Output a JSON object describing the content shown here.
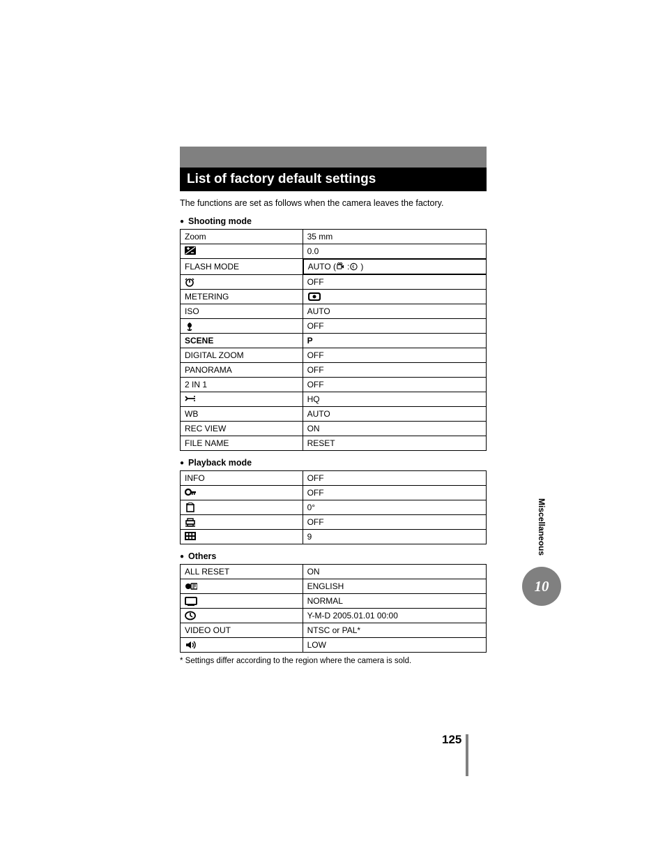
{
  "title": "List of factory default settings",
  "intro": "The functions are set as follows when the camera leaves the factory.",
  "sections": {
    "shooting": {
      "header": "Shooting mode",
      "rows": [
        {
          "label": "Zoom",
          "value": "35 mm"
        },
        {
          "icon": "exposure-comp-icon",
          "value": "0.0"
        },
        {
          "label": "FLASH MODE",
          "value_prefix": "AUTO (",
          "value_icon1": "movie-icon",
          "value_mid": ": ",
          "value_icon2": "flash-off-icon",
          "value_suffix": ")"
        },
        {
          "icon": "self-timer-icon",
          "value": "OFF"
        },
        {
          "label": "METERING",
          "value_icon": "metering-icon"
        },
        {
          "label": "ISO",
          "value": "AUTO"
        },
        {
          "icon": "macro-icon",
          "value": "OFF"
        },
        {
          "label": "SCENE",
          "label_bold": true,
          "value": "P",
          "value_bold": true
        },
        {
          "label": "DIGITAL ZOOM",
          "value": "OFF"
        },
        {
          "label": "PANORAMA",
          "value": "OFF"
        },
        {
          "label": "2 IN 1",
          "value": "OFF"
        },
        {
          "icon": "quality-icon",
          "value": "HQ"
        },
        {
          "label": "WB",
          "value": "AUTO"
        },
        {
          "label": "REC VIEW",
          "value": "ON"
        },
        {
          "label": "FILE NAME",
          "value": "RESET"
        }
      ]
    },
    "playback": {
      "header": "Playback mode",
      "rows": [
        {
          "label": "INFO",
          "value": "OFF"
        },
        {
          "icon": "protect-icon",
          "value": "OFF"
        },
        {
          "icon": "rotate-icon",
          "value": "0°"
        },
        {
          "icon": "print-icon",
          "value": "OFF"
        },
        {
          "icon": "index-icon",
          "value": "9"
        }
      ]
    },
    "others": {
      "header": "Others",
      "rows": [
        {
          "label": "ALL RESET",
          "value": "ON"
        },
        {
          "icon": "language-icon",
          "value": "ENGLISH"
        },
        {
          "icon": "monitor-icon",
          "value": "NORMAL"
        },
        {
          "icon": "datetime-icon",
          "value": "Y-M-D 2005.01.01 00:00"
        },
        {
          "label": "VIDEO OUT",
          "value": "NTSC or PAL*"
        },
        {
          "icon": "beep-icon",
          "value": "LOW"
        }
      ]
    }
  },
  "footnote": "* Settings differ according to the region where the camera is sold.",
  "side_label": "Miscellaneous",
  "chapter_number": "10",
  "page_number": "125",
  "colors": {
    "gray": "#808080",
    "black": "#000000",
    "white": "#ffffff"
  }
}
